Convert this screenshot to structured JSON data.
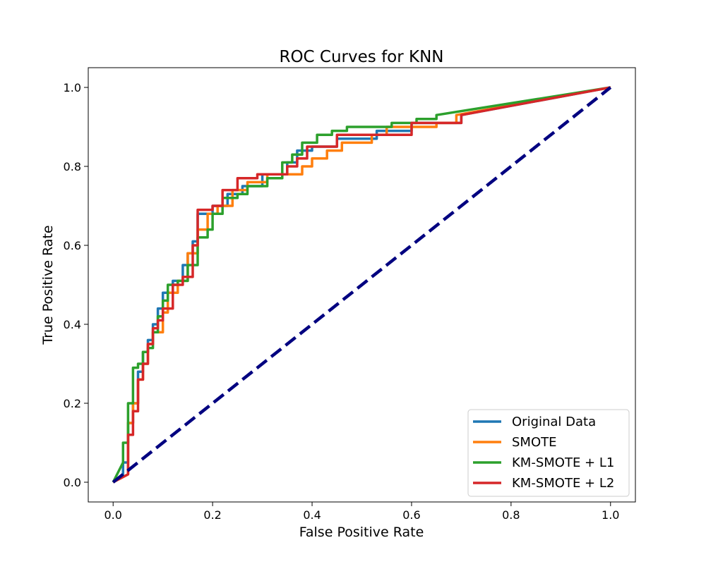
{
  "chart_data": {
    "type": "line",
    "title": "ROC Curves for KNN",
    "xlabel": "False Positive Rate",
    "ylabel": "True Positive Rate",
    "xlim": [
      -0.05,
      1.05
    ],
    "ylim": [
      -0.05,
      1.05
    ],
    "xticks": [
      0.0,
      0.2,
      0.4,
      0.6,
      0.8,
      1.0
    ],
    "yticks": [
      0.0,
      0.2,
      0.4,
      0.6,
      0.8,
      1.0
    ],
    "xtick_labels": [
      "0.0",
      "0.2",
      "0.4",
      "0.6",
      "0.8",
      "1.0"
    ],
    "ytick_labels": [
      "0.0",
      "0.2",
      "0.4",
      "0.6",
      "0.8",
      "1.0"
    ],
    "grid": false,
    "legend_position": "lower-right",
    "series": [
      {
        "name": "Original Data",
        "color": "#1f77b4",
        "x": [
          0.0,
          0.02,
          0.02,
          0.03,
          0.03,
          0.04,
          0.04,
          0.05,
          0.05,
          0.06,
          0.06,
          0.07,
          0.07,
          0.08,
          0.08,
          0.09,
          0.09,
          0.1,
          0.1,
          0.12,
          0.12,
          0.14,
          0.14,
          0.15,
          0.15,
          0.16,
          0.16,
          0.17,
          0.17,
          0.2,
          0.2,
          0.23,
          0.23,
          0.26,
          0.26,
          0.3,
          0.3,
          0.35,
          0.35,
          0.37,
          0.37,
          0.4,
          0.4,
          0.45,
          0.45,
          0.53,
          0.53,
          0.6,
          0.6,
          0.7,
          0.7,
          1.0
        ],
        "y": [
          0.0,
          0.02,
          0.05,
          0.05,
          0.15,
          0.15,
          0.2,
          0.2,
          0.28,
          0.28,
          0.33,
          0.33,
          0.36,
          0.36,
          0.4,
          0.4,
          0.44,
          0.44,
          0.48,
          0.48,
          0.51,
          0.51,
          0.55,
          0.55,
          0.58,
          0.58,
          0.61,
          0.61,
          0.68,
          0.68,
          0.7,
          0.7,
          0.73,
          0.73,
          0.75,
          0.75,
          0.78,
          0.78,
          0.81,
          0.81,
          0.84,
          0.84,
          0.85,
          0.85,
          0.87,
          0.87,
          0.89,
          0.89,
          0.91,
          0.91,
          0.93,
          1.0
        ]
      },
      {
        "name": "SMOTE",
        "color": "#ff7f0e",
        "x": [
          0.0,
          0.03,
          0.03,
          0.04,
          0.04,
          0.05,
          0.05,
          0.06,
          0.06,
          0.07,
          0.07,
          0.08,
          0.08,
          0.1,
          0.1,
          0.11,
          0.11,
          0.13,
          0.13,
          0.15,
          0.15,
          0.17,
          0.17,
          0.19,
          0.19,
          0.21,
          0.21,
          0.24,
          0.24,
          0.27,
          0.27,
          0.31,
          0.31,
          0.38,
          0.38,
          0.4,
          0.4,
          0.43,
          0.43,
          0.46,
          0.46,
          0.52,
          0.52,
          0.55,
          0.55,
          0.65,
          0.65,
          0.69,
          0.69,
          1.0
        ],
        "y": [
          0.0,
          0.02,
          0.15,
          0.15,
          0.2,
          0.2,
          0.26,
          0.26,
          0.3,
          0.3,
          0.35,
          0.35,
          0.38,
          0.38,
          0.43,
          0.43,
          0.48,
          0.48,
          0.51,
          0.51,
          0.58,
          0.58,
          0.64,
          0.64,
          0.68,
          0.68,
          0.7,
          0.7,
          0.74,
          0.74,
          0.76,
          0.76,
          0.78,
          0.78,
          0.8,
          0.8,
          0.82,
          0.82,
          0.84,
          0.84,
          0.86,
          0.86,
          0.88,
          0.88,
          0.9,
          0.9,
          0.91,
          0.91,
          0.93,
          1.0
        ]
      },
      {
        "name": "KM-SMOTE + L1",
        "color": "#2ca02c",
        "x": [
          0.0,
          0.02,
          0.02,
          0.03,
          0.03,
          0.04,
          0.04,
          0.05,
          0.05,
          0.06,
          0.06,
          0.07,
          0.07,
          0.08,
          0.08,
          0.09,
          0.09,
          0.1,
          0.1,
          0.11,
          0.11,
          0.13,
          0.13,
          0.15,
          0.15,
          0.17,
          0.17,
          0.19,
          0.19,
          0.2,
          0.2,
          0.22,
          0.22,
          0.25,
          0.25,
          0.27,
          0.27,
          0.31,
          0.31,
          0.34,
          0.34,
          0.36,
          0.36,
          0.38,
          0.38,
          0.41,
          0.41,
          0.44,
          0.44,
          0.47,
          0.47,
          0.56,
          0.56,
          0.61,
          0.61,
          0.65,
          0.65,
          1.0
        ],
        "y": [
          0.0,
          0.05,
          0.1,
          0.1,
          0.2,
          0.2,
          0.29,
          0.29,
          0.3,
          0.3,
          0.33,
          0.33,
          0.34,
          0.34,
          0.38,
          0.38,
          0.42,
          0.42,
          0.46,
          0.46,
          0.5,
          0.5,
          0.51,
          0.51,
          0.55,
          0.55,
          0.62,
          0.62,
          0.64,
          0.64,
          0.68,
          0.68,
          0.72,
          0.72,
          0.73,
          0.73,
          0.75,
          0.75,
          0.77,
          0.77,
          0.81,
          0.81,
          0.83,
          0.83,
          0.86,
          0.86,
          0.88,
          0.88,
          0.89,
          0.89,
          0.9,
          0.9,
          0.91,
          0.91,
          0.92,
          0.92,
          0.93,
          1.0
        ]
      },
      {
        "name": "KM-SMOTE + L2",
        "color": "#d62728",
        "x": [
          0.0,
          0.03,
          0.03,
          0.04,
          0.04,
          0.05,
          0.05,
          0.06,
          0.06,
          0.07,
          0.07,
          0.08,
          0.08,
          0.09,
          0.09,
          0.1,
          0.1,
          0.12,
          0.12,
          0.14,
          0.14,
          0.16,
          0.16,
          0.17,
          0.17,
          0.2,
          0.2,
          0.22,
          0.22,
          0.25,
          0.25,
          0.29,
          0.29,
          0.35,
          0.35,
          0.37,
          0.37,
          0.39,
          0.39,
          0.45,
          0.45,
          0.6,
          0.6,
          0.7,
          0.7,
          1.0
        ],
        "y": [
          0.0,
          0.02,
          0.12,
          0.12,
          0.18,
          0.18,
          0.26,
          0.26,
          0.3,
          0.3,
          0.35,
          0.35,
          0.39,
          0.39,
          0.41,
          0.41,
          0.44,
          0.44,
          0.5,
          0.5,
          0.52,
          0.52,
          0.6,
          0.6,
          0.69,
          0.69,
          0.7,
          0.7,
          0.74,
          0.74,
          0.77,
          0.77,
          0.78,
          0.78,
          0.8,
          0.8,
          0.82,
          0.82,
          0.85,
          0.85,
          0.88,
          0.88,
          0.91,
          0.91,
          0.93,
          1.0
        ]
      }
    ],
    "reference_line": {
      "x": [
        0.0,
        1.0
      ],
      "y": [
        0.0,
        1.0
      ],
      "color": "#000080",
      "style": "dashed"
    }
  }
}
